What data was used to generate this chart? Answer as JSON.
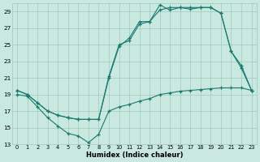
{
  "xlabel": "Humidex (Indice chaleur)",
  "background_color": "#c8e8e0",
  "grid_color": "#a0c8c0",
  "line_color": "#1a7a6e",
  "xlim": [
    -0.5,
    23.5
  ],
  "ylim": [
    13,
    30
  ],
  "yticks": [
    13,
    15,
    17,
    19,
    21,
    23,
    25,
    27,
    29
  ],
  "xticks": [
    0,
    1,
    2,
    3,
    4,
    5,
    6,
    7,
    8,
    9,
    10,
    11,
    12,
    13,
    14,
    15,
    16,
    17,
    18,
    19,
    20,
    21,
    22,
    23
  ],
  "series1_x": [
    0,
    1,
    2,
    3,
    4,
    5,
    6,
    7,
    8,
    9,
    10,
    11,
    12,
    13,
    14,
    15,
    16,
    17,
    18,
    19,
    20,
    21,
    22,
    23
  ],
  "series1_y": [
    19.0,
    18.8,
    17.5,
    16.2,
    15.2,
    14.3,
    14.0,
    13.2,
    14.2,
    17.0,
    17.5,
    17.8,
    18.2,
    18.5,
    19.0,
    19.2,
    19.4,
    19.5,
    19.6,
    19.7,
    19.8,
    19.8,
    19.8,
    19.5
  ],
  "series2_x": [
    0,
    1,
    2,
    3,
    4,
    5,
    6,
    7,
    8,
    9,
    10,
    11,
    12,
    13,
    14,
    15,
    16,
    17,
    18,
    19,
    20,
    21,
    22,
    23
  ],
  "series2_y": [
    19.5,
    19.0,
    18.0,
    17.0,
    16.5,
    16.2,
    16.0,
    16.0,
    16.0,
    21.2,
    25.0,
    25.5,
    27.5,
    27.8,
    29.2,
    29.5,
    29.5,
    29.5,
    29.5,
    29.5,
    28.8,
    24.2,
    22.5,
    19.5
  ],
  "series3_x": [
    0,
    1,
    2,
    3,
    4,
    5,
    6,
    7,
    8,
    9,
    10,
    11,
    12,
    13,
    14,
    15,
    16,
    17,
    18,
    19,
    20,
    21,
    22,
    23
  ],
  "series3_y": [
    19.5,
    19.0,
    18.0,
    17.0,
    16.5,
    16.2,
    16.0,
    16.0,
    16.0,
    21.0,
    24.8,
    25.8,
    27.8,
    27.8,
    29.8,
    29.2,
    29.5,
    29.3,
    29.5,
    29.5,
    28.8,
    24.2,
    22.2,
    19.5
  ]
}
